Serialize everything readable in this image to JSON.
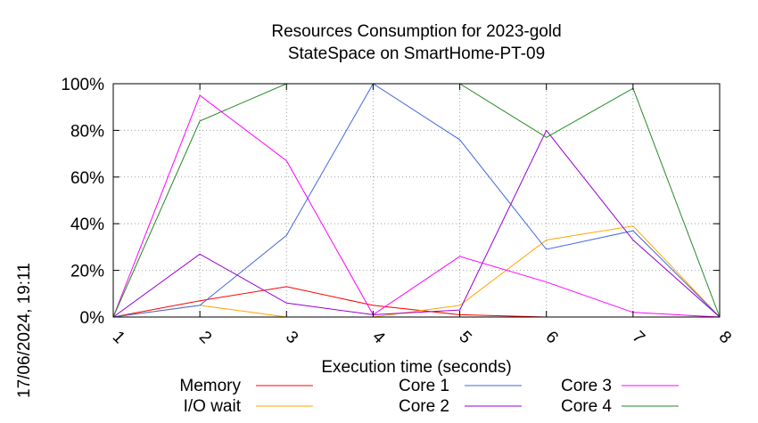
{
  "chart_data": {
    "type": "line",
    "title": "Resources Consumption for 2023-gold",
    "subtitle": "StateSpace on SmartHome-PT-09",
    "xlabel": "Execution time (seconds)",
    "ylabel": "",
    "x": [
      1,
      2,
      3,
      4,
      5,
      6,
      7,
      8
    ],
    "x_ticks": [
      "1",
      "2",
      "3",
      "4",
      "5",
      "6",
      "7",
      "8"
    ],
    "xlim": [
      1,
      8
    ],
    "ylim": [
      0,
      100
    ],
    "y_ticks": [
      "0%",
      "20%",
      "40%",
      "60%",
      "80%",
      "100%"
    ],
    "grid": true,
    "legend_position": "bottom",
    "series": [
      {
        "name": "Memory",
        "color": "#ff0000",
        "values": [
          0,
          7,
          13,
          5,
          1,
          0,
          0,
          0
        ]
      },
      {
        "name": "I/O wait",
        "color": "#ffa500",
        "values": [
          0,
          5,
          0,
          0,
          5,
          33,
          39,
          0
        ]
      },
      {
        "name": "Core 1",
        "color": "#4169e1",
        "values": [
          0,
          5,
          35,
          100,
          76,
          29,
          37,
          0
        ]
      },
      {
        "name": "Core 2",
        "color": "#9400d3",
        "values": [
          0,
          27,
          6,
          1,
          3,
          80,
          33,
          0
        ]
      },
      {
        "name": "Core 3",
        "color": "#ff00ff",
        "values": [
          0,
          95,
          67,
          1,
          26,
          15,
          2,
          0
        ]
      },
      {
        "name": "Core 4",
        "color": "#228b22",
        "values": [
          0,
          84,
          100,
          100,
          100,
          77,
          98,
          0
        ]
      }
    ]
  },
  "timestamp": "17/06/2024, 19:11"
}
